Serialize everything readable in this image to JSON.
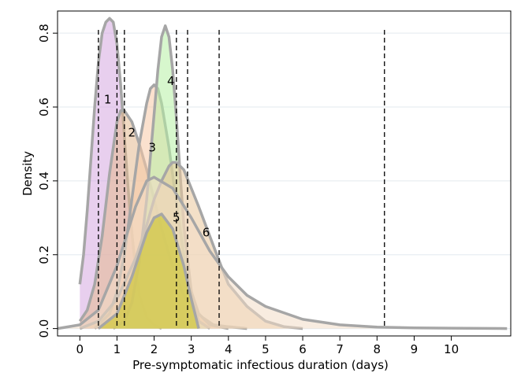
{
  "chart_data": {
    "type": "area",
    "xlabel": "Pre-symptomatic infectious duration (days)",
    "ylabel": "Density",
    "xlim": [
      -0.6,
      11.6
    ],
    "ylim": [
      -0.02,
      0.86
    ],
    "xticks": [
      0,
      1,
      2,
      3,
      4,
      5,
      6,
      7,
      8,
      9,
      10
    ],
    "yticks": [
      0.0,
      0.2,
      0.4,
      0.6,
      0.8
    ],
    "ytick_labels": [
      "0.0",
      "0.2",
      "0.4",
      "0.6",
      "0.8"
    ],
    "grid": true,
    "vlines": [
      0.5,
      1.0,
      1.2,
      2.6,
      2.9,
      3.75,
      8.2
    ],
    "series": [
      {
        "name": "1",
        "color": "#d6a8e0",
        "x": [
          0,
          0.1,
          0.2,
          0.3,
          0.4,
          0.5,
          0.6,
          0.7,
          0.8,
          0.9,
          1.0,
          1.1,
          1.2,
          1.3,
          1.4,
          1.5,
          1.6,
          1.8,
          2.0,
          2.2
        ],
        "y": [
          0.12,
          0.2,
          0.32,
          0.46,
          0.6,
          0.72,
          0.8,
          0.83,
          0.84,
          0.83,
          0.77,
          0.66,
          0.52,
          0.38,
          0.26,
          0.16,
          0.09,
          0.03,
          0.01,
          0.0
        ]
      },
      {
        "name": "2",
        "color": "#e3b98f",
        "x": [
          0,
          0.2,
          0.4,
          0.6,
          0.8,
          1.0,
          1.1,
          1.2,
          1.4,
          1.6,
          1.8,
          2.0,
          2.2,
          2.4,
          2.6,
          2.8,
          3.0,
          3.3,
          3.6,
          4.0,
          4.5
        ],
        "y": [
          0.02,
          0.05,
          0.12,
          0.25,
          0.42,
          0.56,
          0.59,
          0.59,
          0.56,
          0.5,
          0.43,
          0.35,
          0.27,
          0.2,
          0.14,
          0.09,
          0.06,
          0.03,
          0.01,
          0.005,
          0.0
        ]
      },
      {
        "name": "3",
        "color": "#f7c9a5",
        "x": [
          0.4,
          0.8,
          1.0,
          1.2,
          1.4,
          1.6,
          1.8,
          1.9,
          2.0,
          2.1,
          2.2,
          2.4,
          2.6,
          2.8,
          3.0,
          3.2,
          3.5,
          4.0
        ],
        "y": [
          0.0,
          0.04,
          0.1,
          0.2,
          0.35,
          0.5,
          0.61,
          0.65,
          0.66,
          0.65,
          0.61,
          0.49,
          0.34,
          0.2,
          0.1,
          0.04,
          0.01,
          0.0
        ]
      },
      {
        "name": "4",
        "color": "#b6f0a4",
        "x": [
          0.9,
          1.2,
          1.4,
          1.6,
          1.8,
          2.0,
          2.1,
          2.2,
          2.3,
          2.4,
          2.5,
          2.6,
          2.7,
          2.8,
          3.0,
          3.2,
          3.5
        ],
        "y": [
          0.0,
          0.02,
          0.07,
          0.18,
          0.35,
          0.58,
          0.7,
          0.79,
          0.82,
          0.79,
          0.7,
          0.57,
          0.42,
          0.28,
          0.1,
          0.02,
          0.0
        ]
      },
      {
        "name": "5",
        "color": "#e9c79b",
        "x": [
          0,
          0.5,
          1.0,
          1.5,
          1.8,
          2.0,
          2.2,
          2.4,
          2.5,
          2.6,
          2.8,
          3.0,
          3.2,
          3.5,
          3.8,
          4.0,
          4.5,
          5.0,
          5.5,
          6.0
        ],
        "y": [
          0.0,
          0.02,
          0.08,
          0.19,
          0.28,
          0.35,
          0.4,
          0.44,
          0.45,
          0.45,
          0.43,
          0.38,
          0.33,
          0.25,
          0.17,
          0.12,
          0.06,
          0.02,
          0.005,
          0.0
        ]
      },
      {
        "name": "6",
        "color": "#f3dcc6",
        "x": [
          -0.6,
          0,
          0.5,
          1.0,
          1.5,
          1.8,
          2.0,
          2.5,
          3.0,
          3.5,
          4.0,
          4.5,
          5.0,
          6.0,
          7.0,
          8.0,
          9.0,
          10.0,
          11.5
        ],
        "y": [
          0.0,
          0.01,
          0.05,
          0.17,
          0.33,
          0.4,
          0.41,
          0.38,
          0.3,
          0.21,
          0.14,
          0.09,
          0.06,
          0.025,
          0.01,
          0.004,
          0.002,
          0.001,
          0.0
        ]
      },
      {
        "name": "",
        "color": "#c7c21a",
        "x": [
          0.5,
          1.0,
          1.4,
          1.8,
          2.0,
          2.2,
          2.5,
          2.8,
          3.0,
          3.2
        ],
        "y": [
          0.0,
          0.04,
          0.14,
          0.26,
          0.3,
          0.31,
          0.27,
          0.17,
          0.08,
          0.0
        ]
      }
    ],
    "label_positions": [
      {
        "label": "1",
        "x": 0.75,
        "y": 0.61
      },
      {
        "label": "2",
        "x": 1.4,
        "y": 0.52
      },
      {
        "label": "3",
        "x": 1.95,
        "y": 0.48
      },
      {
        "label": "4",
        "x": 2.45,
        "y": 0.66
      },
      {
        "label": "5",
        "x": 2.6,
        "y": 0.29
      },
      {
        "label": "6",
        "x": 3.4,
        "y": 0.25
      }
    ]
  }
}
